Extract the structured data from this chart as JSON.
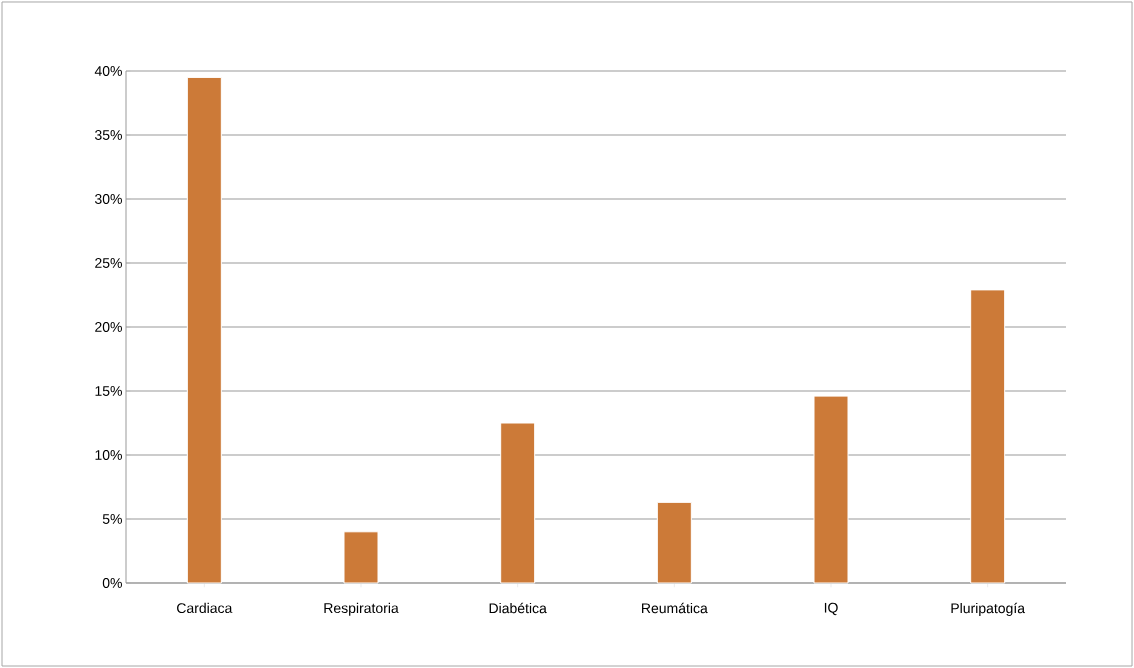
{
  "chart_data": {
    "type": "bar",
    "categories": [
      "Cardiaca",
      "Respiratoria",
      "Diabética",
      "Reumática",
      "IQ",
      "Pluripatogía"
    ],
    "values": [
      39.5,
      4.0,
      12.5,
      6.3,
      14.6,
      22.9
    ],
    "color": "#cc7a38",
    "ylim": [
      0,
      40
    ],
    "yticks": [
      {
        "value": 0,
        "label": "0%"
      },
      {
        "value": 5,
        "label": "5%"
      },
      {
        "value": 10,
        "label": "10%"
      },
      {
        "value": 15,
        "label": "15%"
      },
      {
        "value": 20,
        "label": "20%"
      },
      {
        "value": 25,
        "label": "25%"
      },
      {
        "value": 30,
        "label": "30%"
      },
      {
        "value": 35,
        "label": "35%"
      },
      {
        "value": 40,
        "label": "40%"
      }
    ],
    "grid": "y"
  }
}
